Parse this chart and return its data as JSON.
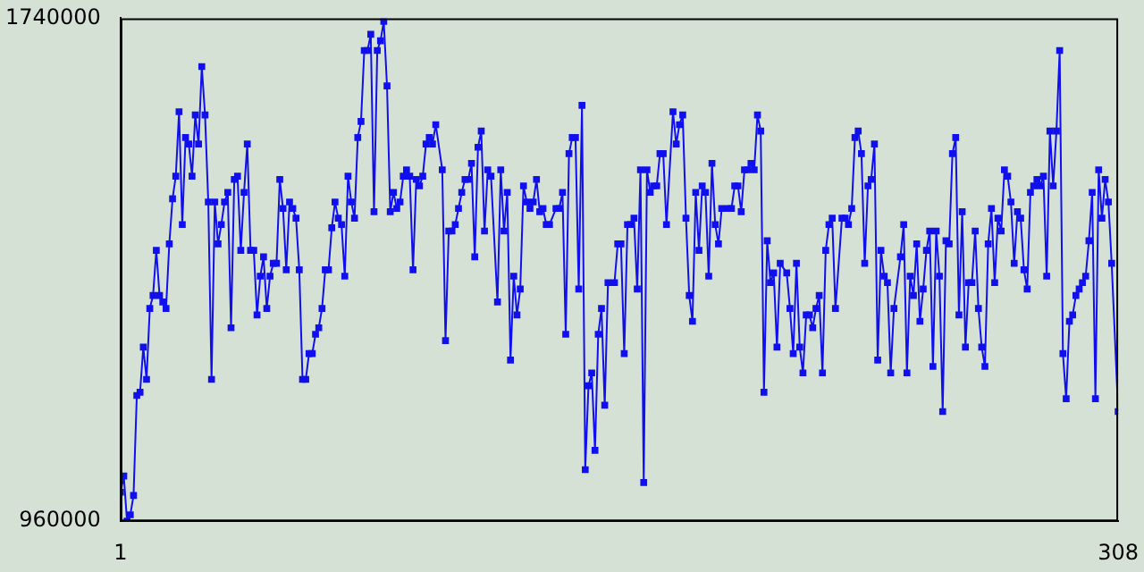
{
  "chart_data": {
    "type": "line",
    "color": "#1010ee",
    "marker": "square",
    "xlim": [
      1,
      308
    ],
    "xticks": [
      1,
      308
    ],
    "ylim": [
      960000,
      1740000
    ],
    "yticks": [
      960000,
      1740000
    ],
    "grid": false,
    "x": [
      1,
      2,
      3,
      4,
      5,
      6,
      7,
      8,
      9,
      10,
      11,
      12,
      13,
      14,
      15,
      16,
      17,
      18,
      19,
      20,
      21,
      22,
      23,
      24,
      25,
      26,
      27,
      28,
      29,
      30,
      31,
      32,
      33,
      34,
      35,
      36,
      37,
      38,
      39,
      40,
      41,
      42,
      43,
      44,
      45,
      46,
      47,
      48,
      49,
      50,
      51,
      52,
      53,
      54,
      55,
      56,
      57,
      58,
      59,
      60,
      61,
      62,
      63,
      64,
      65,
      66,
      67,
      68,
      69,
      70,
      71,
      72,
      73,
      74,
      75,
      76,
      77,
      78,
      79,
      80,
      81,
      82,
      83,
      84,
      85,
      86,
      87,
      88,
      89,
      90,
      91,
      92,
      93,
      94,
      95,
      96,
      97,
      98,
      100,
      101,
      102,
      103,
      104,
      105,
      106,
      107,
      108,
      109,
      110,
      111,
      112,
      113,
      114,
      115,
      117,
      118,
      119,
      120,
      121,
      122,
      123,
      124,
      125,
      126,
      127,
      128,
      129,
      130,
      131,
      132,
      133,
      135,
      136,
      137,
      138,
      139,
      140,
      141,
      142,
      143,
      144,
      145,
      146,
      147,
      148,
      149,
      150,
      151,
      153,
      154,
      155,
      156,
      157,
      158,
      159,
      160,
      161,
      162,
      163,
      164,
      165,
      166,
      167,
      168,
      169,
      171,
      172,
      173,
      174,
      175,
      176,
      177,
      178,
      179,
      180,
      181,
      182,
      183,
      184,
      185,
      186,
      188,
      189,
      190,
      191,
      192,
      193,
      194,
      195,
      196,
      197,
      198,
      199,
      200,
      201,
      202,
      203,
      204,
      206,
      207,
      208,
      209,
      210,
      211,
      212,
      213,
      214,
      215,
      216,
      217,
      218,
      219,
      220,
      221,
      223,
      224,
      225,
      226,
      227,
      228,
      229,
      230,
      231,
      232,
      233,
      234,
      235,
      236,
      237,
      238,
      239,
      241,
      242,
      243,
      244,
      245,
      246,
      247,
      248,
      249,
      250,
      251,
      252,
      253,
      254,
      255,
      256,
      257,
      258,
      259,
      260,
      261,
      262,
      263,
      264,
      265,
      266,
      267,
      268,
      269,
      270,
      271,
      272,
      273,
      274,
      275,
      276,
      277,
      278,
      279,
      280,
      281,
      282,
      283,
      284,
      285,
      286,
      287,
      288,
      289,
      290,
      291,
      292,
      293,
      294,
      295,
      296,
      297,
      298,
      299,
      300,
      301,
      302,
      303,
      304,
      305,
      306,
      308
    ],
    "values": [
      1005000,
      1030000,
      960000,
      970000,
      1000000,
      1155000,
      1160000,
      1230000,
      1180000,
      1290000,
      1310000,
      1380000,
      1310000,
      1300000,
      1290000,
      1390000,
      1460000,
      1495000,
      1595000,
      1420000,
      1555000,
      1545000,
      1495000,
      1590000,
      1545000,
      1665000,
      1590000,
      1455000,
      1180000,
      1455000,
      1390000,
      1420000,
      1455000,
      1470000,
      1260000,
      1490000,
      1495000,
      1380000,
      1470000,
      1545000,
      1380000,
      1380000,
      1280000,
      1340000,
      1370000,
      1290000,
      1340000,
      1360000,
      1360000,
      1490000,
      1445000,
      1350000,
      1455000,
      1445000,
      1430000,
      1350000,
      1180000,
      1180000,
      1220000,
      1220000,
      1250000,
      1260000,
      1290000,
      1350000,
      1350000,
      1415000,
      1455000,
      1430000,
      1420000,
      1340000,
      1495000,
      1455000,
      1430000,
      1555000,
      1580000,
      1690000,
      1690000,
      1715000,
      1440000,
      1690000,
      1705000,
      1735000,
      1635000,
      1440000,
      1470000,
      1445000,
      1455000,
      1495000,
      1505000,
      1495000,
      1350000,
      1490000,
      1480000,
      1495000,
      1545000,
      1555000,
      1545000,
      1575000,
      1505000,
      1240000,
      1410000,
      1410000,
      1420000,
      1445000,
      1470000,
      1490000,
      1490000,
      1515000,
      1370000,
      1540000,
      1565000,
      1410000,
      1505000,
      1495000,
      1300000,
      1505000,
      1410000,
      1470000,
      1210000,
      1340000,
      1280000,
      1320000,
      1480000,
      1455000,
      1445000,
      1455000,
      1490000,
      1440000,
      1445000,
      1420000,
      1420000,
      1445000,
      1445000,
      1470000,
      1250000,
      1530000,
      1555000,
      1555000,
      1320000,
      1605000,
      1040000,
      1170000,
      1190000,
      1070000,
      1250000,
      1290000,
      1140000,
      1330000,
      1330000,
      1390000,
      1390000,
      1220000,
      1420000,
      1420000,
      1430000,
      1320000,
      1505000,
      1020000,
      1505000,
      1470000,
      1480000,
      1480000,
      1530000,
      1530000,
      1420000,
      1595000,
      1545000,
      1575000,
      1590000,
      1430000,
      1310000,
      1270000,
      1470000,
      1380000,
      1480000,
      1470000,
      1340000,
      1515000,
      1420000,
      1390000,
      1445000,
      1445000,
      1445000,
      1480000,
      1480000,
      1440000,
      1505000,
      1505000,
      1515000,
      1505000,
      1590000,
      1565000,
      1160000,
      1395000,
      1330000,
      1345000,
      1230000,
      1360000,
      1345000,
      1290000,
      1220000,
      1360000,
      1230000,
      1190000,
      1280000,
      1280000,
      1260000,
      1290000,
      1310000,
      1190000,
      1380000,
      1420000,
      1430000,
      1290000,
      1430000,
      1430000,
      1420000,
      1445000,
      1555000,
      1565000,
      1530000,
      1360000,
      1480000,
      1490000,
      1545000,
      1210000,
      1380000,
      1340000,
      1330000,
      1190000,
      1290000,
      1370000,
      1420000,
      1190000,
      1340000,
      1310000,
      1390000,
      1270000,
      1320000,
      1380000,
      1410000,
      1200000,
      1410000,
      1340000,
      1130000,
      1395000,
      1390000,
      1530000,
      1555000,
      1280000,
      1440000,
      1230000,
      1330000,
      1330000,
      1410000,
      1290000,
      1230000,
      1200000,
      1390000,
      1445000,
      1330000,
      1430000,
      1410000,
      1505000,
      1495000,
      1455000,
      1360000,
      1440000,
      1430000,
      1350000,
      1320000,
      1470000,
      1480000,
      1490000,
      1480000,
      1495000,
      1340000,
      1565000,
      1480000,
      1565000,
      1690000,
      1220000,
      1150000,
      1270000,
      1280000,
      1310000,
      1320000,
      1330000,
      1340000,
      1395000,
      1470000,
      1150000,
      1505000,
      1430000,
      1490000,
      1455000,
      1360000,
      1130000
    ]
  }
}
